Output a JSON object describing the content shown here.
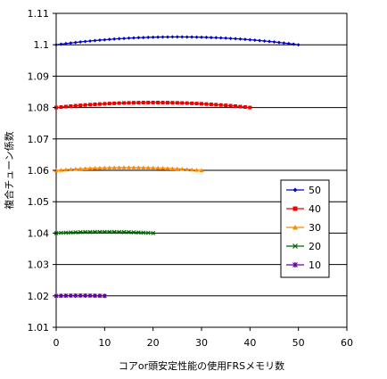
{
  "chart_data": {
    "type": "line",
    "title": "",
    "xlabel": "コアor頭安定性能の使用FRSメモリ数",
    "ylabel": "複合チューン係数",
    "xlim": [
      0,
      60
    ],
    "ylim": [
      1.01,
      1.11
    ],
    "x_ticks": [
      "0",
      "10",
      "20",
      "30",
      "40",
      "50",
      "60"
    ],
    "y_ticks": [
      "1.01",
      "1.02",
      "1.03",
      "1.04",
      "1.05",
      "1.06",
      "1.07",
      "1.08",
      "1.09",
      "1.1",
      "1.11"
    ],
    "grid": "horizontal",
    "legend_position": "right",
    "series": [
      {
        "name": "50",
        "color": "#0000cc",
        "marker": "diamond",
        "n": 50,
        "base": 1.1,
        "peak": 1.1025
      },
      {
        "name": "40",
        "color": "#ee0000",
        "marker": "square",
        "n": 40,
        "base": 1.08,
        "peak": 1.0816
      },
      {
        "name": "30",
        "color": "#ff8800",
        "marker": "triangle",
        "n": 30,
        "base": 1.06,
        "peak": 1.0609
      },
      {
        "name": "20",
        "color": "#006600",
        "marker": "x",
        "n": 20,
        "base": 1.04,
        "peak": 1.0404
      },
      {
        "name": "10",
        "color": "#660099",
        "marker": "star",
        "n": 10,
        "base": 1.02,
        "peak": 1.0201
      }
    ]
  }
}
